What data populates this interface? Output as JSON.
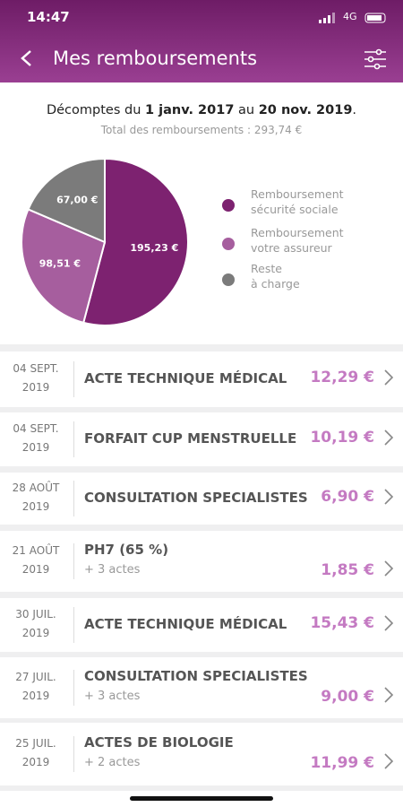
{
  "status_bar": {
    "time": "14:47",
    "network": "4G"
  },
  "header": {
    "title": "Mes remboursements"
  },
  "summary": {
    "prefix": "Décomptes du",
    "start": "1 janv. 2017",
    "middle": "au",
    "end": "20 nov. 2019",
    "suffix": ".",
    "total": "Total des remboursements : 293,74 €"
  },
  "chart_data": {
    "type": "pie",
    "categories": [
      "Remboursement sécurité sociale",
      "Remboursement votre assureur",
      "Reste à charge"
    ],
    "values": [
      195.23,
      98.51,
      67.0
    ],
    "value_labels": [
      "195,23 €",
      "98,51 €",
      "67,00 €"
    ],
    "colors": [
      "#7d2270",
      "#a65e9e",
      "#7b7b7b"
    ]
  },
  "list": [
    {
      "day": "04 SEPT.",
      "year": "2019",
      "title": "ACTE TECHNIQUE MÉDICAL",
      "amount": "12,29 €"
    },
    {
      "day": "04 SEPT.",
      "year": "2019",
      "title": "FORFAIT CUP MENSTRUELLE",
      "amount": "10,19 €"
    },
    {
      "day": "28 AOÛT",
      "year": "2019",
      "title": "CONSULTATION SPECIALISTES",
      "amount": "6,90 €"
    },
    {
      "day": "21 AOÛT",
      "year": "2019",
      "title": "PH7 (65 %)",
      "sub": "+ 3 actes",
      "amount": "1,85 €"
    },
    {
      "day": "30 JUIL.",
      "year": "2019",
      "title": "ACTE TECHNIQUE MÉDICAL",
      "amount": "15,43 €"
    },
    {
      "day": "27 JUIL.",
      "year": "2019",
      "title": "CONSULTATION SPECIALISTES",
      "sub": "+ 3 actes",
      "amount": "9,00 €"
    },
    {
      "day": "25 JUIL.",
      "year": "2019",
      "title": "ACTES DE BIOLOGIE",
      "sub": "+ 2 actes",
      "amount": "11,99 €"
    }
  ]
}
